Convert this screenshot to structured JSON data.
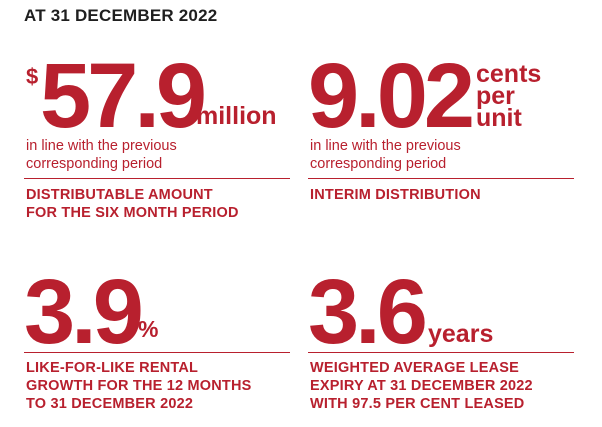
{
  "heading": "AT 31 DECEMBER 2022",
  "cards": [
    {
      "prefix": "$",
      "value": "57.9",
      "unit": "million",
      "note_line1": "in line with the previous",
      "note_line2": "corresponding period",
      "caption_line1": "DISTRIBUTABLE AMOUNT",
      "caption_line2": "FOR THE SIX MONTH PERIOD"
    },
    {
      "value": "9.02",
      "unit_line1": "cents",
      "unit_line2": "per",
      "unit_line3": "unit",
      "note_line1": "in line with the previous",
      "note_line2": "corresponding period",
      "caption_line1": "INTERIM DISTRIBUTION"
    },
    {
      "value": "3.9",
      "unit": "%",
      "caption_line1": "LIKE-FOR-LIKE RENTAL",
      "caption_line2": "GROWTH FOR THE 12 MONTHS",
      "caption_line3": "TO 31 DECEMBER 2022"
    },
    {
      "value": "3.6",
      "unit": "years",
      "caption_line1": "WEIGHTED AVERAGE LEASE",
      "caption_line2": "EXPIRY AT 31 DECEMBER 2022",
      "caption_line3": "WITH 97.5 PER CENT LEASED"
    }
  ]
}
